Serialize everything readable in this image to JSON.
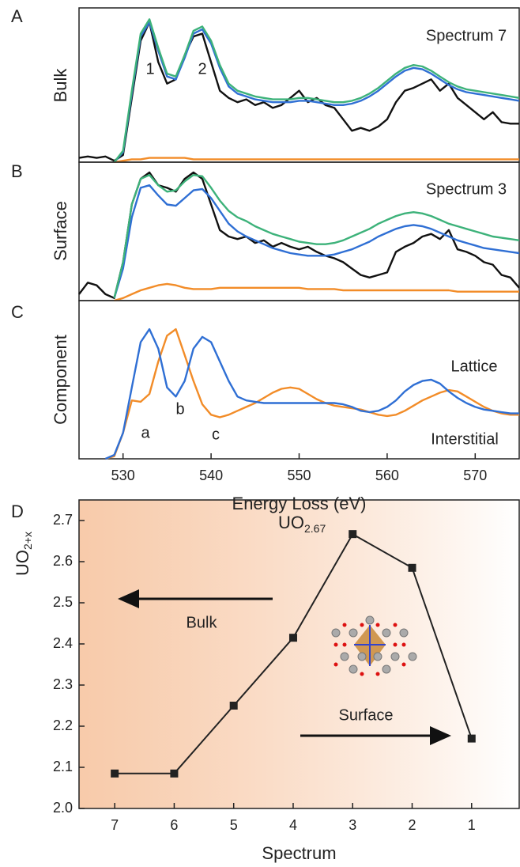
{
  "chart_data": [
    {
      "type": "line",
      "panel_label": "A",
      "ylabel": "Bulk",
      "xlim": [
        525,
        575
      ],
      "ylim": [
        0,
        1.08
      ],
      "annotations": [
        "Spectrum 7",
        "1",
        "2"
      ],
      "x": [
        525,
        526,
        527,
        528,
        529,
        530,
        531,
        532,
        533,
        534,
        535,
        536,
        537,
        538,
        539,
        540,
        541,
        542,
        543,
        544,
        545,
        546,
        547,
        548,
        549,
        550,
        551,
        552,
        553,
        554,
        555,
        556,
        557,
        558,
        559,
        560,
        561,
        562,
        563,
        564,
        565,
        566,
        567,
        568,
        569,
        570,
        571,
        572,
        573,
        574,
        575
      ],
      "series": [
        {
          "color": "#f28c28",
          "values": [
            null,
            null,
            null,
            null,
            0.0,
            0.01,
            0.02,
            0.02,
            0.03,
            0.03,
            0.03,
            0.03,
            0.03,
            0.02,
            0.02,
            0.02,
            0.02,
            0.02,
            0.02,
            0.02,
            0.02,
            0.02,
            0.02,
            0.02,
            0.02,
            0.02,
            0.02,
            0.02,
            0.02,
            0.02,
            0.02,
            0.02,
            0.02,
            0.02,
            0.02,
            0.02,
            0.02,
            0.02,
            0.02,
            0.02,
            0.02,
            0.02,
            0.02,
            0.02,
            0.02,
            0.02,
            0.02,
            0.02,
            0.02,
            0.02,
            0.02
          ]
        },
        {
          "color": "#111111",
          "values": [
            0.03,
            0.04,
            0.03,
            0.04,
            0.01,
            0.05,
            0.45,
            0.85,
            0.98,
            0.7,
            0.55,
            0.58,
            0.75,
            0.88,
            0.9,
            0.7,
            0.5,
            0.45,
            0.42,
            0.44,
            0.4,
            0.42,
            0.38,
            0.4,
            0.45,
            0.5,
            0.42,
            0.45,
            0.4,
            0.38,
            0.3,
            0.22,
            0.24,
            0.22,
            0.25,
            0.3,
            0.42,
            0.5,
            0.52,
            0.55,
            0.58,
            0.5,
            0.55,
            0.45,
            0.4,
            0.35,
            0.3,
            0.35,
            0.28,
            0.27,
            0.27
          ]
        },
        {
          "color": "#2f6fd4",
          "values": [
            null,
            null,
            null,
            null,
            0.0,
            0.07,
            0.48,
            0.88,
            0.98,
            0.78,
            0.6,
            0.58,
            0.73,
            0.9,
            0.93,
            0.83,
            0.66,
            0.53,
            0.48,
            0.46,
            0.44,
            0.43,
            0.42,
            0.42,
            0.42,
            0.43,
            0.43,
            0.42,
            0.41,
            0.4,
            0.4,
            0.41,
            0.43,
            0.46,
            0.5,
            0.55,
            0.6,
            0.64,
            0.66,
            0.65,
            0.62,
            0.58,
            0.54,
            0.51,
            0.49,
            0.48,
            0.47,
            0.46,
            0.45,
            0.44,
            0.43
          ]
        },
        {
          "color": "#3db27a",
          "values": [
            null,
            null,
            null,
            null,
            0.0,
            0.08,
            0.5,
            0.9,
            1.0,
            0.8,
            0.62,
            0.6,
            0.75,
            0.92,
            0.95,
            0.85,
            0.68,
            0.55,
            0.5,
            0.48,
            0.46,
            0.45,
            0.44,
            0.44,
            0.44,
            0.45,
            0.45,
            0.44,
            0.43,
            0.42,
            0.42,
            0.43,
            0.45,
            0.48,
            0.52,
            0.57,
            0.62,
            0.66,
            0.68,
            0.67,
            0.64,
            0.6,
            0.56,
            0.53,
            0.51,
            0.5,
            0.49,
            0.48,
            0.47,
            0.46,
            0.45
          ]
        }
      ]
    },
    {
      "type": "line",
      "panel_label": "B",
      "ylabel": "Surface",
      "xlim": [
        525,
        575
      ],
      "ylim": [
        0,
        1.08
      ],
      "annotations": [
        "Spectrum 3"
      ],
      "x": [
        525,
        526,
        527,
        528,
        529,
        530,
        531,
        532,
        533,
        534,
        535,
        536,
        537,
        538,
        539,
        540,
        541,
        542,
        543,
        544,
        545,
        546,
        547,
        548,
        549,
        550,
        551,
        552,
        553,
        554,
        555,
        556,
        557,
        558,
        559,
        560,
        561,
        562,
        563,
        564,
        565,
        566,
        567,
        568,
        569,
        570,
        571,
        572,
        573,
        574,
        575
      ],
      "series": [
        {
          "color": "#f28c28",
          "values": [
            null,
            null,
            null,
            null,
            0.0,
            0.02,
            0.05,
            0.08,
            0.1,
            0.12,
            0.13,
            0.12,
            0.1,
            0.09,
            0.09,
            0.09,
            0.1,
            0.1,
            0.1,
            0.1,
            0.1,
            0.1,
            0.1,
            0.1,
            0.1,
            0.1,
            0.09,
            0.09,
            0.09,
            0.09,
            0.08,
            0.08,
            0.08,
            0.08,
            0.08,
            0.08,
            0.08,
            0.08,
            0.08,
            0.08,
            0.08,
            0.08,
            0.08,
            0.07,
            0.07,
            0.07,
            0.07,
            0.07,
            0.07,
            0.07,
            0.07
          ]
        },
        {
          "color": "#111111",
          "values": [
            0.05,
            0.14,
            0.12,
            0.05,
            0.02,
            0.3,
            0.75,
            0.95,
            1.0,
            0.9,
            0.88,
            0.85,
            0.95,
            1.0,
            0.95,
            0.75,
            0.55,
            0.5,
            0.48,
            0.5,
            0.45,
            0.47,
            0.42,
            0.45,
            0.42,
            0.4,
            0.42,
            0.38,
            0.35,
            0.33,
            0.3,
            0.25,
            0.2,
            0.18,
            0.2,
            0.22,
            0.38,
            0.42,
            0.45,
            0.5,
            0.52,
            0.48,
            0.55,
            0.4,
            0.38,
            0.35,
            0.3,
            0.28,
            0.2,
            0.18,
            0.1
          ]
        },
        {
          "color": "#2f6fd4",
          "values": [
            null,
            null,
            null,
            null,
            0.02,
            0.25,
            0.65,
            0.88,
            0.9,
            0.82,
            0.75,
            0.74,
            0.8,
            0.86,
            0.87,
            0.8,
            0.7,
            0.6,
            0.54,
            0.5,
            0.47,
            0.44,
            0.41,
            0.39,
            0.37,
            0.36,
            0.35,
            0.35,
            0.35,
            0.36,
            0.38,
            0.4,
            0.43,
            0.46,
            0.5,
            0.53,
            0.56,
            0.58,
            0.59,
            0.58,
            0.56,
            0.53,
            0.5,
            0.47,
            0.45,
            0.43,
            0.41,
            0.4,
            0.39,
            0.38,
            0.37
          ]
        },
        {
          "color": "#3db27a",
          "values": [
            null,
            null,
            null,
            null,
            0.02,
            0.3,
            0.75,
            0.95,
            0.98,
            0.9,
            0.85,
            0.86,
            0.93,
            0.98,
            0.97,
            0.88,
            0.78,
            0.7,
            0.65,
            0.62,
            0.58,
            0.55,
            0.52,
            0.5,
            0.48,
            0.46,
            0.45,
            0.44,
            0.44,
            0.45,
            0.47,
            0.5,
            0.53,
            0.56,
            0.6,
            0.63,
            0.66,
            0.68,
            0.69,
            0.68,
            0.66,
            0.63,
            0.6,
            0.58,
            0.56,
            0.54,
            0.52,
            0.5,
            0.49,
            0.48,
            0.47
          ]
        }
      ]
    },
    {
      "type": "line",
      "panel_label": "C",
      "ylabel": "Component",
      "xlabel": "Energy Loss (eV)",
      "xlim": [
        525,
        575
      ],
      "ylim": [
        0,
        1.22
      ],
      "xticks": [
        530,
        540,
        550,
        560,
        570
      ],
      "annotations": [
        "Lattice",
        "a",
        "b",
        "c",
        "Interstitial"
      ],
      "x": [
        525,
        526,
        527,
        528,
        529,
        530,
        531,
        532,
        533,
        534,
        535,
        536,
        537,
        538,
        539,
        540,
        541,
        542,
        543,
        544,
        545,
        546,
        547,
        548,
        549,
        550,
        551,
        552,
        553,
        554,
        555,
        556,
        557,
        558,
        559,
        560,
        561,
        562,
        563,
        564,
        565,
        566,
        567,
        568,
        569,
        570,
        571,
        572,
        573,
        574,
        575
      ],
      "series": [
        {
          "color": "#f28c28",
          "values": [
            null,
            null,
            null,
            0.0,
            0.02,
            0.2,
            0.45,
            0.44,
            0.5,
            0.75,
            0.95,
            1.0,
            0.8,
            0.6,
            0.42,
            0.34,
            0.32,
            0.34,
            0.37,
            0.4,
            0.43,
            0.47,
            0.51,
            0.54,
            0.55,
            0.54,
            0.5,
            0.46,
            0.43,
            0.41,
            0.4,
            0.39,
            0.38,
            0.36,
            0.34,
            0.33,
            0.34,
            0.37,
            0.41,
            0.45,
            0.48,
            0.51,
            0.53,
            0.52,
            0.48,
            0.44,
            0.4,
            0.37,
            0.35,
            0.34,
            0.34
          ]
        },
        {
          "color": "#2f6fd4",
          "values": [
            null,
            null,
            null,
            0.0,
            0.03,
            0.2,
            0.55,
            0.9,
            1.0,
            0.85,
            0.55,
            0.48,
            0.6,
            0.85,
            0.94,
            0.9,
            0.75,
            0.6,
            0.48,
            0.45,
            0.44,
            0.43,
            0.43,
            0.43,
            0.43,
            0.43,
            0.43,
            0.43,
            0.43,
            0.43,
            0.42,
            0.4,
            0.37,
            0.36,
            0.37,
            0.4,
            0.45,
            0.52,
            0.57,
            0.6,
            0.61,
            0.58,
            0.52,
            0.47,
            0.43,
            0.4,
            0.38,
            0.37,
            0.36,
            0.35,
            0.35
          ]
        }
      ]
    },
    {
      "type": "line",
      "markers": true,
      "panel_label": "D",
      "ylabel": "UO",
      "ylabel_sub": "2+x",
      "xlabel": "Spectrum",
      "xlim": [
        7.6,
        0.2
      ],
      "ylim": [
        2.0,
        2.75
      ],
      "xticks": [
        7,
        6,
        5,
        4,
        3,
        2,
        1
      ],
      "yticks": [
        {
          "value": 2.0,
          "label": "2.0"
        },
        2.1,
        2.2,
        2.3,
        2.4,
        2.5,
        2.6,
        2.7
      ],
      "point_label": {
        "text": "UO",
        "sub": "2.67"
      },
      "annotations": [
        "Bulk",
        "Surface"
      ],
      "x": [
        7,
        6,
        5,
        4,
        3,
        2,
        1
      ],
      "series": [
        {
          "color": "#222222",
          "values": [
            2.085,
            2.085,
            2.25,
            2.415,
            2.667,
            2.585,
            2.17
          ]
        }
      ]
    }
  ]
}
